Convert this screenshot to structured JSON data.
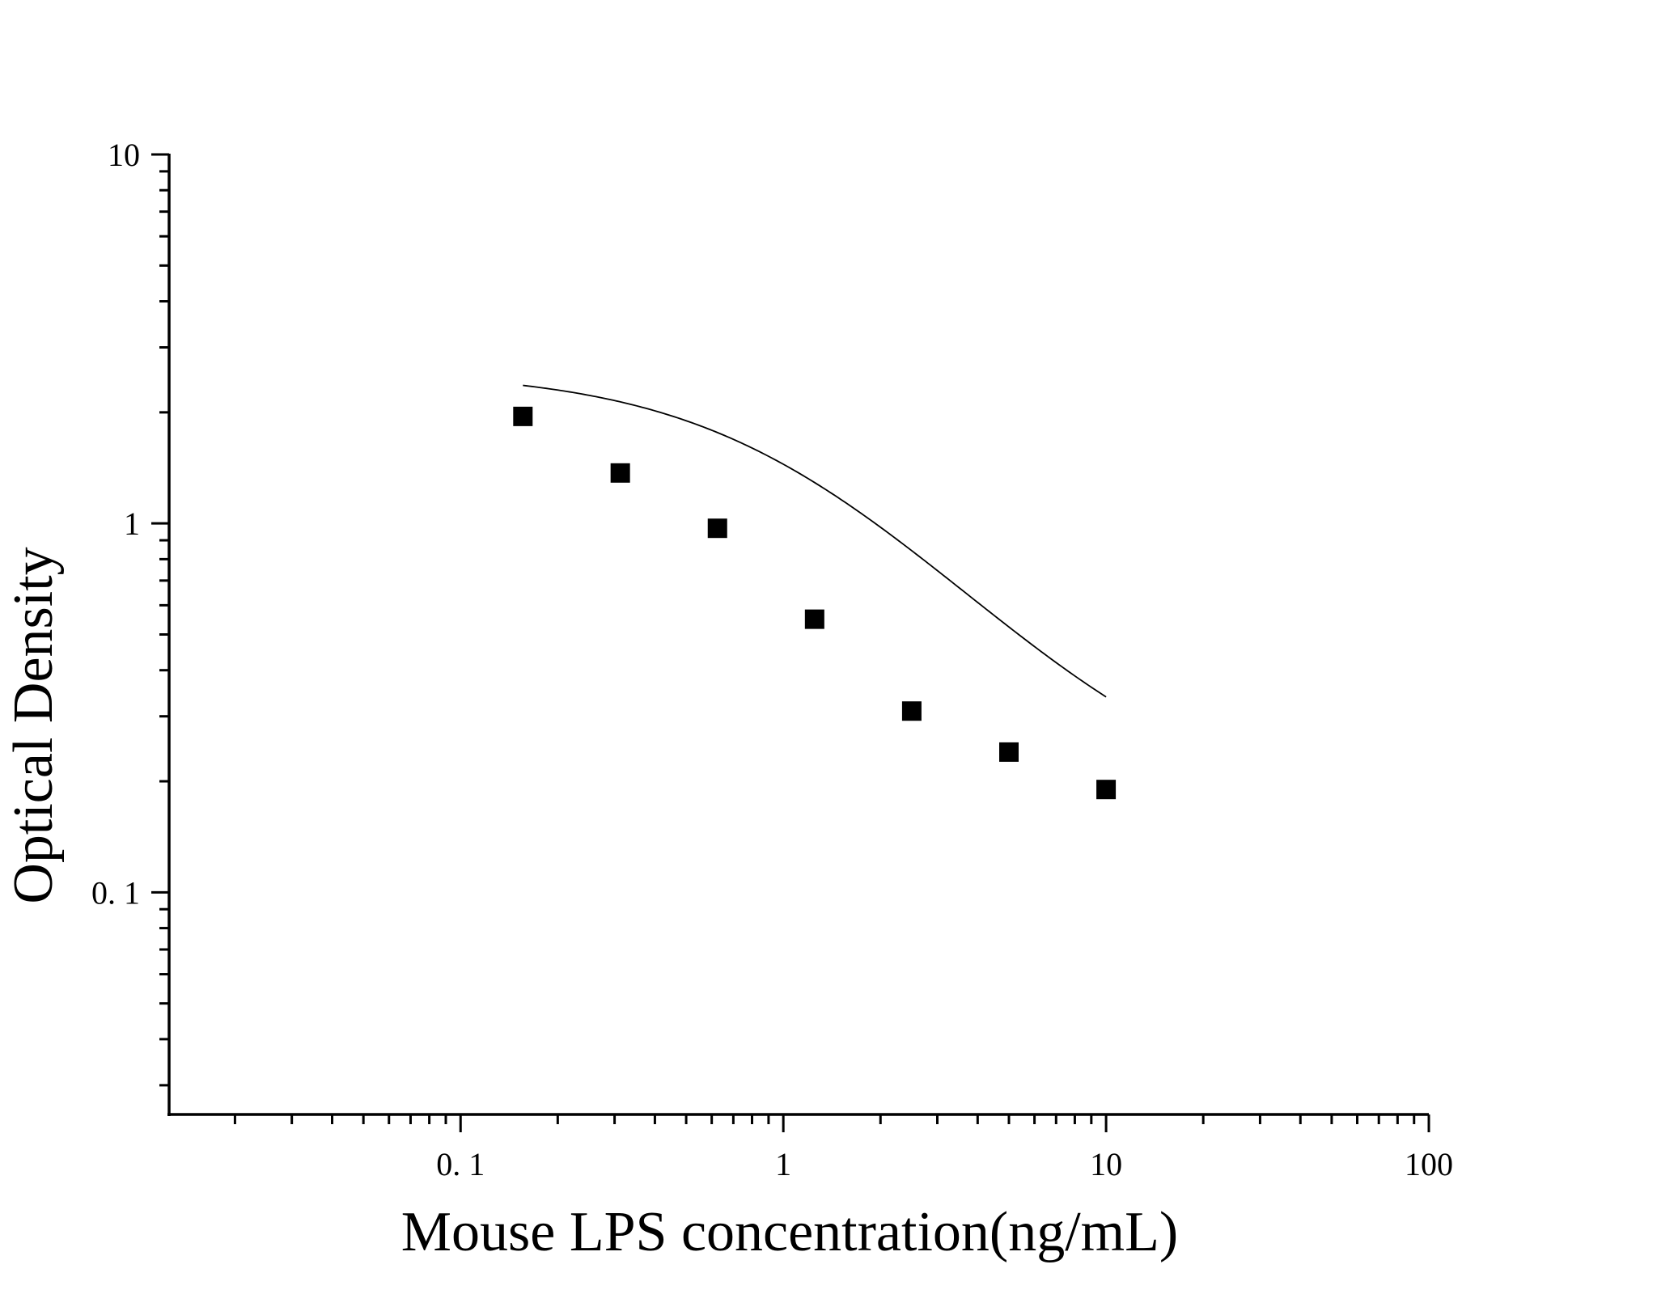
{
  "chart_data": {
    "type": "scatter",
    "title": "",
    "xlabel": "Mouse LPS concentration(ng/mL)",
    "ylabel": "Optical Density",
    "x_scale": "log",
    "y_scale": "log",
    "xlim": [
      0.0125,
      100
    ],
    "ylim": [
      0.025,
      10
    ],
    "x_ticks": [
      {
        "value": 0.1,
        "label": "0. 1"
      },
      {
        "value": 1,
        "label": "1"
      },
      {
        "value": 10,
        "label": "10"
      },
      {
        "value": 100,
        "label": "100"
      }
    ],
    "y_ticks": [
      {
        "value": 0.1,
        "label": "0. 1"
      },
      {
        "value": 1,
        "label": "1"
      },
      {
        "value": 10,
        "label": "10"
      }
    ],
    "grid": false,
    "legend": "none",
    "series": [
      {
        "marker": "square",
        "color": "#000000",
        "points": [
          {
            "x": 0.156,
            "y": 1.95
          },
          {
            "x": 0.3125,
            "y": 1.37
          },
          {
            "x": 0.625,
            "y": 0.97
          },
          {
            "x": 1.25,
            "y": 0.55
          },
          {
            "x": 2.5,
            "y": 0.31
          },
          {
            "x": 5,
            "y": 0.24
          },
          {
            "x": 10,
            "y": 0.19
          }
        ]
      }
    ],
    "fit_curve": {
      "model": "4PL",
      "color": "#000000",
      "x_range": [
        0.156,
        10
      ],
      "params": {
        "A": 2.6,
        "D": 0.16,
        "C": 1.1,
        "B": 1.15
      }
    }
  }
}
